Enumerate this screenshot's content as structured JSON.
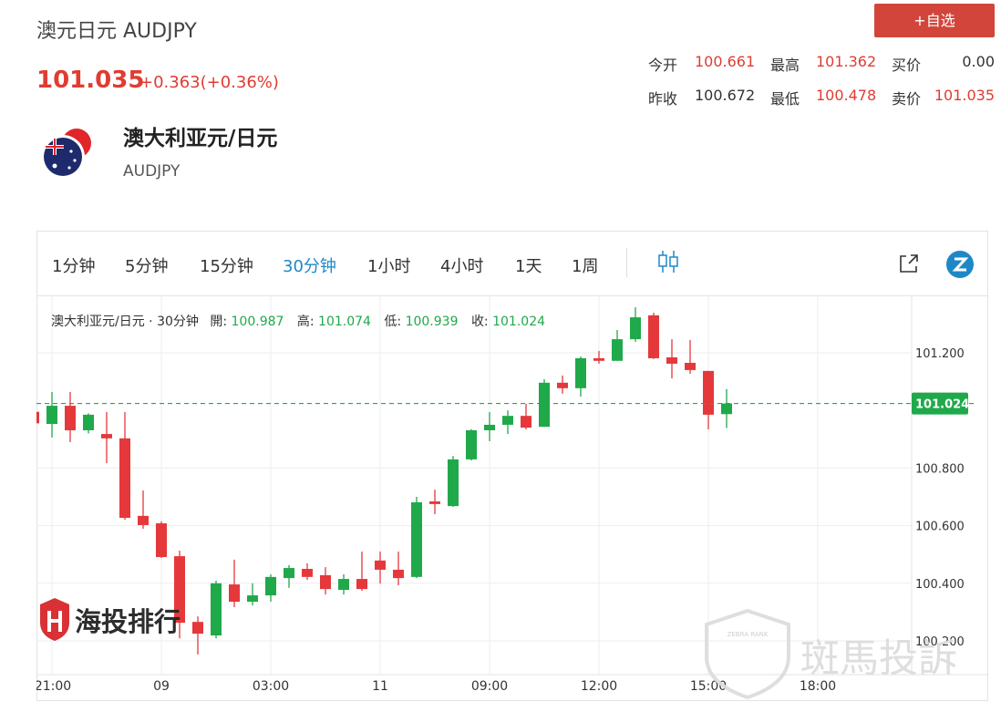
{
  "header": {
    "title": "澳元日元 AUDJPY",
    "button": "+自选"
  },
  "quote": {
    "price": "101.035",
    "change": "+0.363(+0.36%)"
  },
  "stats": [
    [
      {
        "label": "今开",
        "value": "100.661"
      },
      {
        "label": "最高",
        "value": "101.362"
      },
      {
        "label": "买价",
        "value": "0.00"
      }
    ],
    [
      {
        "label": "昨收",
        "value": "100.672"
      },
      {
        "label": "最低",
        "value": "100.478"
      },
      {
        "label": "卖价",
        "value": "101.035"
      }
    ]
  ],
  "instrument": {
    "name": "澳大利亚元/日元",
    "code": "AUDJPY"
  },
  "toolbar": {
    "intervals": [
      "1分钟",
      "5分钟",
      "15分钟",
      "30分钟",
      "1小时",
      "4小时",
      "1天",
      "1周"
    ]
  },
  "legend": {
    "title": "澳大利亚元/日元 · 30分钟",
    "items": [
      {
        "label": "開:",
        "value": "100.987"
      },
      {
        "label": "高:",
        "value": "101.074"
      },
      {
        "label": "低:",
        "value": "100.939"
      },
      {
        "label": "收:",
        "value": "101.024"
      }
    ]
  },
  "watermarks": {
    "left": "海投排行",
    "right": "斑馬投訴",
    "badge": "ZEBRA RANK"
  },
  "chart_data": {
    "type": "candlestick",
    "categories": [
      null,
      "21:00",
      null,
      null,
      null,
      null,
      null,
      "09",
      null,
      null,
      null,
      null,
      null,
      "03:00",
      null,
      null,
      null,
      null,
      null,
      "11",
      null,
      null,
      null,
      null,
      null,
      "09:00",
      null,
      null,
      null,
      null,
      null,
      "12:00",
      null,
      null,
      null,
      null,
      null,
      "15:00",
      null,
      null,
      null,
      null,
      null,
      "18:00"
    ],
    "open": [
      100.995,
      100.953,
      101.016,
      100.931,
      100.918,
      100.903,
      100.634,
      100.608,
      100.494,
      100.266,
      100.219,
      100.396,
      100.336,
      100.358,
      100.418,
      100.45,
      100.428,
      100.377,
      100.415,
      100.479,
      100.447,
      100.422,
      100.684,
      100.668,
      100.83,
      100.931,
      100.95,
      100.981,
      100.943,
      101.096,
      101.077,
      101.181,
      101.172,
      101.247,
      101.33,
      101.184,
      101.165,
      101.137,
      100.987,
      null,
      null,
      null,
      null,
      null
    ],
    "high": [
      101.0,
      101.064,
      101.064,
      100.99,
      100.994,
      100.994,
      100.722,
      100.615,
      100.513,
      100.285,
      100.409,
      100.482,
      100.4,
      100.431,
      100.463,
      100.469,
      100.456,
      100.431,
      100.51,
      100.51,
      100.51,
      100.7,
      100.725,
      100.842,
      100.935,
      100.994,
      101.0,
      101.023,
      101.108,
      101.121,
      101.187,
      101.206,
      101.279,
      101.358,
      101.339,
      101.247,
      101.244,
      101.137,
      101.074,
      null,
      null,
      null,
      null,
      null
    ],
    "low": [
      100.95,
      100.906,
      100.89,
      100.92,
      100.817,
      100.62,
      100.589,
      100.488,
      100.209,
      100.153,
      100.209,
      100.317,
      100.323,
      100.336,
      100.384,
      100.412,
      100.361,
      100.361,
      100.374,
      100.399,
      100.393,
      100.418,
      100.64,
      100.665,
      100.826,
      100.893,
      100.918,
      100.934,
      100.943,
      101.058,
      101.048,
      101.162,
      101.172,
      101.238,
      101.178,
      101.111,
      101.127,
      100.934,
      100.939,
      null,
      null,
      null,
      null,
      null
    ],
    "close": [
      100.955,
      101.016,
      100.931,
      100.985,
      100.903,
      100.627,
      100.602,
      100.491,
      100.263,
      100.225,
      100.4,
      100.336,
      100.358,
      100.422,
      100.453,
      100.422,
      100.38,
      100.415,
      100.38,
      100.447,
      100.418,
      100.681,
      100.675,
      100.83,
      100.931,
      100.95,
      100.981,
      100.94,
      101.096,
      101.077,
      101.181,
      101.172,
      101.247,
      101.323,
      101.181,
      101.162,
      101.14,
      100.985,
      101.024,
      null,
      null,
      null,
      null,
      null
    ],
    "up_color": "#1fa94a",
    "down_color": "#e5383b",
    "ylim": [
      100.083,
      101.396
    ],
    "yticks": [
      {
        "value": 100.2,
        "label": "100.200"
      },
      {
        "value": 100.4,
        "label": "100.400"
      },
      {
        "value": 100.6,
        "label": "100.600"
      },
      {
        "value": 100.8,
        "label": "100.800"
      },
      {
        "value": 101.2,
        "label": "101.200"
      }
    ],
    "last_price": {
      "value": 101.024,
      "label": "101.024"
    },
    "grid": true
  }
}
